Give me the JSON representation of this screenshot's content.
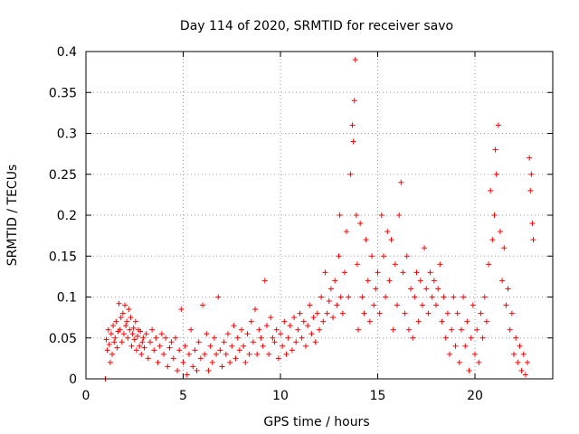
{
  "chart_data": {
    "type": "scatter",
    "title": "Day 114 of 2020, SRMTID for receiver savo",
    "xlabel": "GPS time / hours",
    "ylabel": "SRMTID / TECUs",
    "xlim": [
      0,
      24
    ],
    "ylim": [
      0,
      0.4
    ],
    "xticks": [
      0,
      5,
      10,
      15,
      20
    ],
    "xtick_labels": [
      "0",
      "5",
      "10",
      "15",
      "20"
    ],
    "yticks": [
      0,
      0.05,
      0.1,
      0.15,
      0.2,
      0.25,
      0.3,
      0.35,
      0.4
    ],
    "ytick_labels": [
      "0",
      "0.05",
      "0.1",
      "0.15",
      "0.2",
      "0.25",
      "0.3",
      "0.35",
      "0.4"
    ],
    "grid": true,
    "marker": "+",
    "color": "#ff0000",
    "series": [
      {
        "name": "savo",
        "points": [
          [
            1.0,
            0.0
          ],
          [
            1.05,
            0.048
          ],
          [
            1.1,
            0.035
          ],
          [
            1.15,
            0.06
          ],
          [
            1.2,
            0.042
          ],
          [
            1.25,
            0.02
          ],
          [
            1.3,
            0.055
          ],
          [
            1.35,
            0.03
          ],
          [
            1.4,
            0.065
          ],
          [
            1.45,
            0.045
          ],
          [
            1.5,
            0.05
          ],
          [
            1.55,
            0.07
          ],
          [
            1.6,
            0.038
          ],
          [
            1.65,
            0.058
          ],
          [
            1.7,
            0.092
          ],
          [
            1.75,
            0.06
          ],
          [
            1.8,
            0.075
          ],
          [
            1.85,
            0.045
          ],
          [
            1.9,
            0.08
          ],
          [
            1.95,
            0.055
          ],
          [
            2.0,
            0.09
          ],
          [
            2.05,
            0.065
          ],
          [
            2.1,
            0.07
          ],
          [
            2.15,
            0.05
          ],
          [
            2.2,
            0.085
          ],
          [
            2.25,
            0.06
          ],
          [
            2.3,
            0.075
          ],
          [
            2.35,
            0.04
          ],
          [
            2.4,
            0.055
          ],
          [
            2.45,
            0.062
          ],
          [
            2.5,
            0.048
          ],
          [
            2.55,
            0.07
          ],
          [
            2.6,
            0.035
          ],
          [
            2.65,
            0.052
          ],
          [
            2.7,
            0.06
          ],
          [
            2.75,
            0.04
          ],
          [
            2.8,
            0.058
          ],
          [
            2.85,
            0.03
          ],
          [
            2.9,
            0.045
          ],
          [
            2.95,
            0.05
          ],
          [
            3.0,
            0.038
          ],
          [
            3.1,
            0.055
          ],
          [
            3.2,
            0.025
          ],
          [
            3.3,
            0.045
          ],
          [
            3.4,
            0.06
          ],
          [
            3.5,
            0.035
          ],
          [
            3.6,
            0.05
          ],
          [
            3.7,
            0.02
          ],
          [
            3.8,
            0.04
          ],
          [
            3.9,
            0.055
          ],
          [
            4.0,
            0.03
          ],
          [
            4.1,
            0.05
          ],
          [
            4.2,
            0.015
          ],
          [
            4.3,
            0.038
          ],
          [
            4.4,
            0.045
          ],
          [
            4.5,
            0.025
          ],
          [
            4.6,
            0.05
          ],
          [
            4.7,
            0.01
          ],
          [
            4.8,
            0.035
          ],
          [
            4.9,
            0.085
          ],
          [
            5.0,
            0.02
          ],
          [
            5.1,
            0.04
          ],
          [
            5.2,
            0.005
          ],
          [
            5.3,
            0.03
          ],
          [
            5.4,
            0.06
          ],
          [
            5.5,
            0.015
          ],
          [
            5.6,
            0.035
          ],
          [
            5.7,
            0.01
          ],
          [
            5.8,
            0.045
          ],
          [
            5.9,
            0.025
          ],
          [
            6.0,
            0.09
          ],
          [
            6.1,
            0.03
          ],
          [
            6.2,
            0.055
          ],
          [
            6.3,
            0.01
          ],
          [
            6.4,
            0.04
          ],
          [
            6.5,
            0.02
          ],
          [
            6.6,
            0.05
          ],
          [
            6.7,
            0.03
          ],
          [
            6.8,
            0.1
          ],
          [
            6.9,
            0.035
          ],
          [
            7.0,
            0.015
          ],
          [
            7.1,
            0.045
          ],
          [
            7.2,
            0.03
          ],
          [
            7.3,
            0.055
          ],
          [
            7.4,
            0.02
          ],
          [
            7.5,
            0.04
          ],
          [
            7.6,
            0.065
          ],
          [
            7.7,
            0.025
          ],
          [
            7.8,
            0.05
          ],
          [
            7.9,
            0.035
          ],
          [
            8.0,
            0.06
          ],
          [
            8.1,
            0.04
          ],
          [
            8.2,
            0.02
          ],
          [
            8.3,
            0.055
          ],
          [
            8.4,
            0.03
          ],
          [
            8.5,
            0.07
          ],
          [
            8.6,
            0.045
          ],
          [
            8.7,
            0.085
          ],
          [
            8.8,
            0.03
          ],
          [
            8.9,
            0.06
          ],
          [
            9.0,
            0.05
          ],
          [
            9.1,
            0.04
          ],
          [
            9.2,
            0.12
          ],
          [
            9.3,
            0.065
          ],
          [
            9.4,
            0.03
          ],
          [
            9.5,
            0.075
          ],
          [
            9.6,
            0.05
          ],
          [
            9.7,
            0.045
          ],
          [
            9.8,
            0.06
          ],
          [
            9.9,
            0.025
          ],
          [
            10.0,
            0.055
          ],
          [
            10.1,
            0.04
          ],
          [
            10.2,
            0.07
          ],
          [
            10.3,
            0.03
          ],
          [
            10.4,
            0.05
          ],
          [
            10.5,
            0.065
          ],
          [
            10.6,
            0.035
          ],
          [
            10.7,
            0.075
          ],
          [
            10.8,
            0.045
          ],
          [
            10.9,
            0.06
          ],
          [
            11.0,
            0.08
          ],
          [
            11.1,
            0.05
          ],
          [
            11.2,
            0.07
          ],
          [
            11.3,
            0.04
          ],
          [
            11.4,
            0.065
          ],
          [
            11.5,
            0.09
          ],
          [
            11.6,
            0.055
          ],
          [
            11.7,
            0.075
          ],
          [
            11.8,
            0.045
          ],
          [
            11.9,
            0.08
          ],
          [
            12.0,
            0.06
          ],
          [
            12.1,
            0.1
          ],
          [
            12.2,
            0.07
          ],
          [
            12.3,
            0.13
          ],
          [
            12.4,
            0.08
          ],
          [
            12.5,
            0.095
          ],
          [
            12.6,
            0.11
          ],
          [
            12.7,
            0.075
          ],
          [
            12.8,
            0.12
          ],
          [
            12.9,
            0.09
          ],
          [
            13.0,
            0.15
          ],
          [
            13.05,
            0.2
          ],
          [
            13.1,
            0.1
          ],
          [
            13.2,
            0.08
          ],
          [
            13.3,
            0.13
          ],
          [
            13.4,
            0.18
          ],
          [
            13.5,
            0.1
          ],
          [
            13.6,
            0.25
          ],
          [
            13.7,
            0.31
          ],
          [
            13.75,
            0.29
          ],
          [
            13.8,
            0.34
          ],
          [
            13.85,
            0.39
          ],
          [
            13.9,
            0.2
          ],
          [
            13.95,
            0.14
          ],
          [
            14.0,
            0.06
          ],
          [
            14.1,
            0.19
          ],
          [
            14.2,
            0.1
          ],
          [
            14.3,
            0.08
          ],
          [
            14.4,
            0.17
          ],
          [
            14.5,
            0.12
          ],
          [
            14.6,
            0.07
          ],
          [
            14.7,
            0.15
          ],
          [
            14.8,
            0.09
          ],
          [
            14.9,
            0.11
          ],
          [
            15.0,
            0.13
          ],
          [
            15.1,
            0.08
          ],
          [
            15.2,
            0.2
          ],
          [
            15.3,
            0.15
          ],
          [
            15.4,
            0.1
          ],
          [
            15.5,
            0.18
          ],
          [
            15.6,
            0.12
          ],
          [
            15.7,
            0.17
          ],
          [
            15.8,
            0.06
          ],
          [
            15.9,
            0.14
          ],
          [
            16.0,
            0.09
          ],
          [
            16.1,
            0.2
          ],
          [
            16.2,
            0.24
          ],
          [
            16.3,
            0.13
          ],
          [
            16.4,
            0.08
          ],
          [
            16.5,
            0.15
          ],
          [
            16.6,
            0.06
          ],
          [
            16.7,
            0.11
          ],
          [
            16.8,
            0.05
          ],
          [
            16.9,
            0.1
          ],
          [
            17.0,
            0.13
          ],
          [
            17.1,
            0.07
          ],
          [
            17.2,
            0.12
          ],
          [
            17.3,
            0.09
          ],
          [
            17.4,
            0.16
          ],
          [
            17.5,
            0.11
          ],
          [
            17.6,
            0.08
          ],
          [
            17.7,
            0.13
          ],
          [
            17.8,
            0.1
          ],
          [
            17.9,
            0.12
          ],
          [
            18.0,
            0.09
          ],
          [
            18.1,
            0.11
          ],
          [
            18.2,
            0.14
          ],
          [
            18.3,
            0.07
          ],
          [
            18.4,
            0.1
          ],
          [
            18.5,
            0.05
          ],
          [
            18.6,
            0.08
          ],
          [
            18.7,
            0.03
          ],
          [
            18.8,
            0.06
          ],
          [
            18.9,
            0.1
          ],
          [
            19.0,
            0.04
          ],
          [
            19.1,
            0.08
          ],
          [
            19.2,
            0.02
          ],
          [
            19.3,
            0.06
          ],
          [
            19.4,
            0.1
          ],
          [
            19.5,
            0.04
          ],
          [
            19.6,
            0.07
          ],
          [
            19.7,
            0.01
          ],
          [
            19.8,
            0.05
          ],
          [
            19.9,
            0.09
          ],
          [
            20.0,
            0.03
          ],
          [
            20.1,
            0.06
          ],
          [
            20.2,
            0.02
          ],
          [
            20.3,
            0.08
          ],
          [
            20.4,
            0.05
          ],
          [
            20.5,
            0.1
          ],
          [
            20.6,
            0.07
          ],
          [
            20.7,
            0.14
          ],
          [
            20.8,
            0.23
          ],
          [
            20.9,
            0.17
          ],
          [
            21.0,
            0.2
          ],
          [
            21.05,
            0.28
          ],
          [
            21.1,
            0.25
          ],
          [
            21.2,
            0.31
          ],
          [
            21.3,
            0.18
          ],
          [
            21.4,
            0.12
          ],
          [
            21.5,
            0.16
          ],
          [
            21.6,
            0.09
          ],
          [
            21.7,
            0.11
          ],
          [
            21.8,
            0.06
          ],
          [
            21.9,
            0.08
          ],
          [
            22.0,
            0.03
          ],
          [
            22.1,
            0.05
          ],
          [
            22.2,
            0.02
          ],
          [
            22.3,
            0.04
          ],
          [
            22.4,
            0.01
          ],
          [
            22.5,
            0.03
          ],
          [
            22.6,
            0.005
          ],
          [
            22.7,
            0.02
          ],
          [
            22.8,
            0.27
          ],
          [
            22.85,
            0.23
          ],
          [
            22.9,
            0.25
          ],
          [
            22.95,
            0.19
          ],
          [
            23.0,
            0.17
          ]
        ]
      }
    ]
  }
}
